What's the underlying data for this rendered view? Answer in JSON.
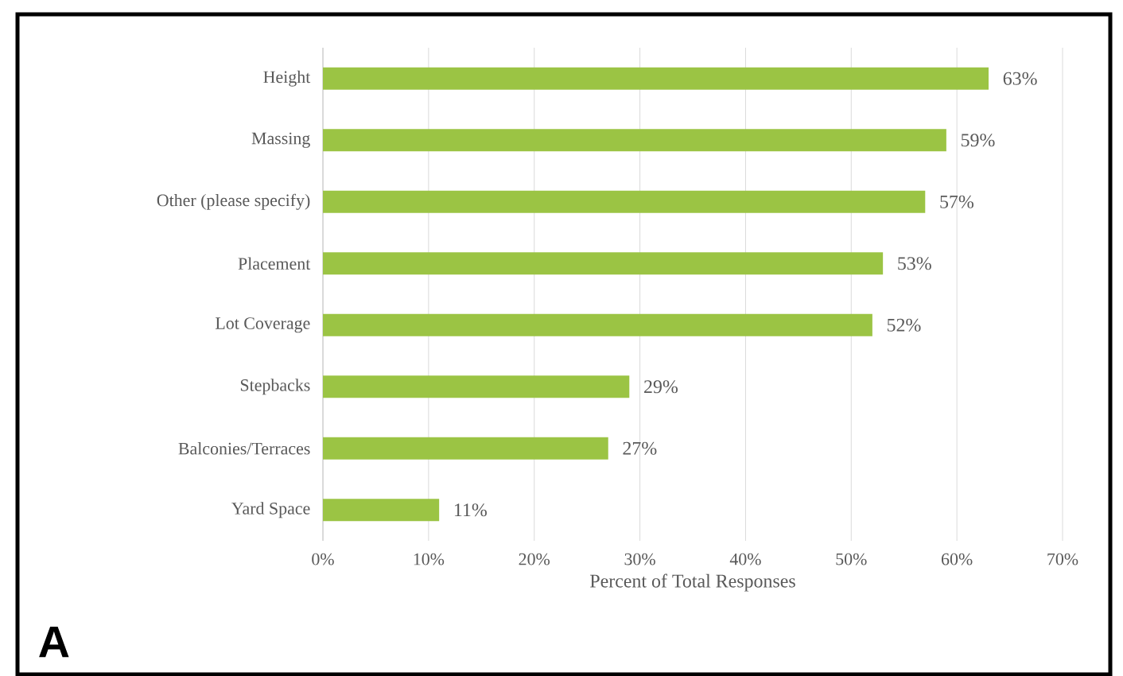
{
  "chart_data": {
    "type": "bar",
    "orientation": "horizontal",
    "categories": [
      "Height",
      "Massing",
      "Other (please specify)",
      "Placement",
      "Lot Coverage",
      "Stepbacks",
      "Balconies/Terraces",
      "Yard Space"
    ],
    "values": [
      63,
      59,
      57,
      53,
      52,
      29,
      27,
      11
    ],
    "value_labels": [
      "63%",
      "59%",
      "57%",
      "53%",
      "52%",
      "29%",
      "27%",
      "11%"
    ],
    "color": "#9bc444",
    "xlabel": "Percent of Total Responses",
    "xlim": [
      0,
      70
    ],
    "xticks": [
      {
        "value": 0,
        "label": "0%"
      },
      {
        "value": 10,
        "label": "10%"
      },
      {
        "value": 20,
        "label": "20%"
      },
      {
        "value": 30,
        "label": "30%"
      },
      {
        "value": 40,
        "label": "40%"
      },
      {
        "value": 50,
        "label": "50%"
      },
      {
        "value": 60,
        "label": "60%"
      },
      {
        "value": 70,
        "label": "70%"
      }
    ],
    "grid": "x",
    "annotations": [
      "A"
    ]
  }
}
